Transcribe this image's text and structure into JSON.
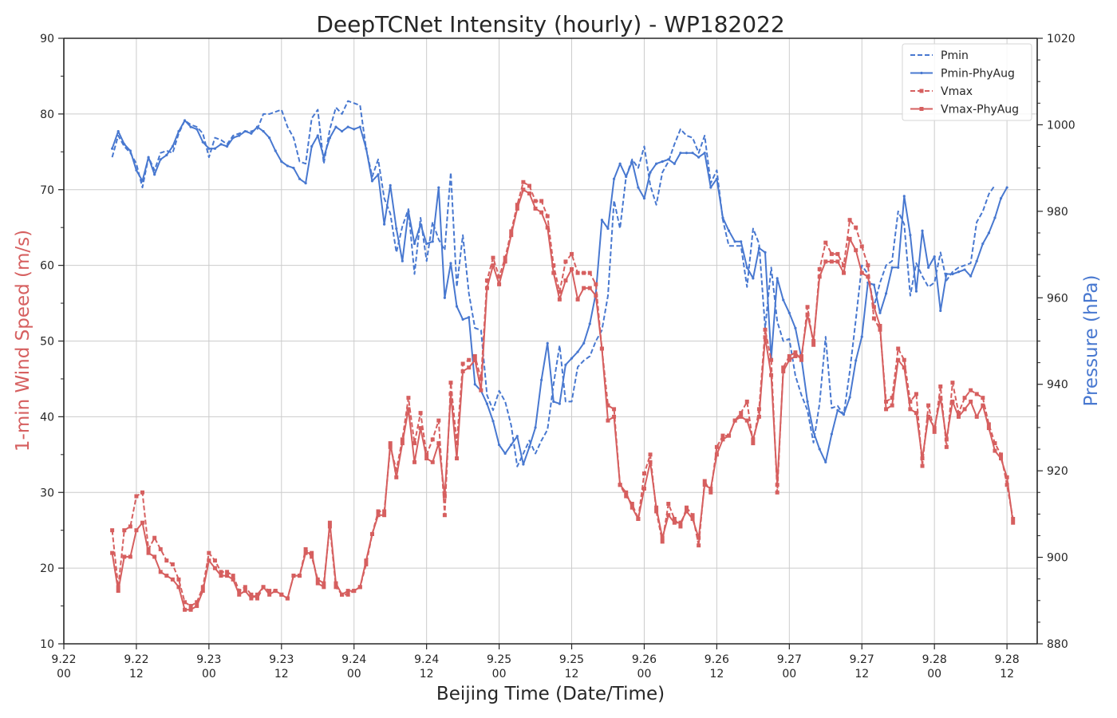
{
  "chart_data": {
    "type": "line",
    "title": "DeepTCNet Intensity (hourly) - WP182022",
    "xlabel": "Beijing Time (Date/Time)",
    "ylabel_left": "1-min Wind Speed (m/s)",
    "ylabel_right": "Pressure (hPa)",
    "ylim_left": [
      10,
      90
    ],
    "ylim_right": [
      880,
      1020
    ],
    "xlim": [
      0,
      161
    ],
    "x_ticks": [
      {
        "pos": 0,
        "date": "9.22",
        "time": "00"
      },
      {
        "pos": 12,
        "date": "9.22",
        "time": "12"
      },
      {
        "pos": 24,
        "date": "9.23",
        "time": "00"
      },
      {
        "pos": 36,
        "date": "9.23",
        "time": "12"
      },
      {
        "pos": 48,
        "date": "9.24",
        "time": "00"
      },
      {
        "pos": 60,
        "date": "9.24",
        "time": "12"
      },
      {
        "pos": 72,
        "date": "9.25",
        "time": "00"
      },
      {
        "pos": 84,
        "date": "9.25",
        "time": "12"
      },
      {
        "pos": 96,
        "date": "9.26",
        "time": "00"
      },
      {
        "pos": 108,
        "date": "9.26",
        "time": "12"
      },
      {
        "pos": 120,
        "date": "9.27",
        "time": "00"
      },
      {
        "pos": 132,
        "date": "9.27",
        "time": "12"
      },
      {
        "pos": 144,
        "date": "9.28",
        "time": "00"
      },
      {
        "pos": 156,
        "date": "9.28",
        "time": "12"
      }
    ],
    "y_ticks_left": [
      10,
      20,
      30,
      40,
      50,
      60,
      70,
      80,
      90
    ],
    "y_ticks_right": [
      880,
      900,
      920,
      940,
      960,
      980,
      1000,
      1020
    ],
    "grid": true,
    "legend_position": "top-right",
    "colors": {
      "pressure": "#4878d0",
      "wind": "#d65f5f"
    },
    "x_start": 8,
    "series": [
      {
        "name": "Pmin",
        "axis": "right",
        "style": "dashed",
        "marker": "none",
        "values": [
          992.5,
          997.5,
          995,
          993.5,
          991,
          985.5,
          992.5,
          989.5,
          993.5,
          994,
          993.5,
          998,
          1001,
          1000,
          999.5,
          998,
          992.5,
          997,
          996.5,
          995.5,
          997.5,
          998,
          998.5,
          998.5,
          999,
          1002.5,
          1002.5,
          1003,
          1003.5,
          999.5,
          997,
          991.5,
          991,
          1001.5,
          1003.5,
          991,
          999,
          1004,
          1002.5,
          1005.5,
          1005,
          1004.5,
          994.5,
          988,
          992,
          983,
          979.5,
          970.5,
          976.5,
          980.5,
          965.5,
          978.5,
          968.5,
          977.5,
          973.5,
          971,
          989,
          962.5,
          974.5,
          961,
          953,
          952.5,
          937.5,
          934,
          938.5,
          936,
          930.5,
          921,
          924,
          927,
          924,
          927,
          929.5,
          940,
          949,
          936,
          936,
          944,
          945.5,
          946.5,
          950,
          952.5,
          960.5,
          982.5,
          976,
          988,
          992,
          990,
          995,
          986,
          981.5,
          989,
          991.5,
          995.5,
          999,
          997.5,
          997,
          993.5,
          997.5,
          986.5,
          989.5,
          978,
          972,
          972,
          972,
          962.5,
          976,
          972.5,
          953,
          967,
          954.5,
          950,
          950.5,
          942,
          937.5,
          934,
          926.5,
          935.5,
          951,
          934.5,
          935,
          933,
          943,
          955,
          967.5,
          965.5,
          958,
          963.5,
          967.5,
          968.5,
          980,
          977,
          960.5,
          968,
          965,
          962.5,
          963.5,
          970.5,
          964,
          966,
          967,
          967.5,
          968,
          977.5,
          980,
          984,
          986
        ]
      },
      {
        "name": "Pmin-PhyAug",
        "axis": "right",
        "style": "solid",
        "marker": "dot",
        "values": [
          994.5,
          998.5,
          995.5,
          994,
          989.5,
          987,
          992.5,
          988.5,
          992,
          993,
          995,
          998.5,
          1001,
          999.5,
          999,
          996,
          994.5,
          994.5,
          995.5,
          995,
          997,
          997.5,
          998.5,
          998,
          999.5,
          998.5,
          997,
          994,
          991.5,
          990.5,
          990,
          987.5,
          986.5,
          995,
          997.5,
          992.5,
          997,
          999.5,
          998.5,
          999.5,
          999,
          999.5,
          994.5,
          987,
          988.5,
          977,
          986,
          976,
          968.5,
          980,
          972.5,
          977,
          972.5,
          973,
          985.5,
          960,
          968,
          958,
          955,
          955.5,
          940,
          938.5,
          935.5,
          931.5,
          926,
          924,
          926,
          928,
          921.5,
          925.5,
          930,
          941,
          949.5,
          936,
          935.5,
          944.5,
          946,
          947.5,
          949.5,
          954,
          961,
          978,
          976,
          987.5,
          991,
          988,
          991.5,
          985.5,
          983,
          989,
          991,
          991.5,
          992,
          991,
          993.5,
          993.5,
          993.5,
          992.5,
          993.5,
          985.5,
          987.5,
          978.5,
          975.5,
          973,
          973,
          967,
          964.5,
          971.5,
          970.5,
          946,
          964.5,
          959.5,
          956.5,
          953,
          946,
          936,
          929,
          925,
          922,
          928.5,
          934,
          933,
          937,
          945.5,
          951,
          963.5,
          963,
          956.5,
          961,
          967,
          967,
          983.5,
          974.5,
          961.5,
          975.5,
          967,
          969.5,
          957,
          965.5,
          965.5,
          966,
          966.5,
          965,
          968.5,
          972.5,
          975,
          978.5,
          983,
          985.5
        ]
      },
      {
        "name": "Vmax",
        "axis": "left",
        "style": "dashed",
        "marker": "square",
        "values": [
          25,
          17.5,
          25,
          25.5,
          29.5,
          30,
          22.5,
          24,
          22.5,
          21,
          20.5,
          18.5,
          15.5,
          15,
          15.5,
          17.5,
          22,
          21,
          19.5,
          19.5,
          19,
          17,
          17.5,
          16.5,
          16,
          17.5,
          17,
          17,
          16.5,
          16,
          19,
          19,
          22.5,
          21.5,
          18.5,
          18,
          25.5,
          17.5,
          16.5,
          16.5,
          17,
          17.5,
          20.5,
          24.5,
          27.5,
          27.5,
          36,
          33,
          37,
          42.5,
          36.5,
          40.5,
          35,
          37,
          39.5,
          27,
          44.5,
          36.5,
          47,
          47.5,
          48,
          45,
          58,
          61,
          58.5,
          61,
          64.5,
          68,
          71,
          70.5,
          68.5,
          68.5,
          66.5,
          60,
          56.5,
          60.5,
          61.5,
          59,
          59,
          59,
          57.5,
          49,
          41.5,
          41,
          31,
          29.5,
          28.5,
          26.5,
          32.5,
          35,
          27.5,
          23.5,
          28.5,
          26.5,
          25.5,
          28,
          27,
          23,
          31.5,
          30,
          36,
          37.5,
          37.5,
          39.5,
          40.5,
          42,
          36.5,
          41,
          51.5,
          47.5,
          30,
          46.5,
          48,
          48.5,
          47.5,
          54.5,
          49.5,
          59.5,
          63,
          61.5,
          61.5,
          60,
          66,
          65,
          62.5,
          60,
          53,
          51.5,
          42,
          42.5,
          49,
          47.5,
          42,
          43,
          33.5,
          41.5,
          38,
          44,
          36,
          44.5,
          40.5,
          42.5,
          43.5,
          43,
          42.5,
          39,
          36.5,
          35,
          31,
          26.5
        ]
      },
      {
        "name": "Vmax-PhyAug",
        "axis": "left",
        "style": "solid",
        "marker": "square",
        "values": [
          22,
          17,
          21.5,
          21.5,
          25,
          26,
          22,
          21.5,
          19.5,
          19,
          18.5,
          17.5,
          14.5,
          14.5,
          15,
          17,
          21,
          20,
          19,
          19,
          18.5,
          16.5,
          17,
          16,
          16.5,
          17.5,
          16.5,
          17,
          16.5,
          16,
          19,
          19,
          22,
          22,
          18,
          17.5,
          26,
          18,
          16.5,
          17,
          17,
          17.5,
          21,
          24.5,
          27,
          27,
          36.5,
          32,
          36.5,
          41,
          34,
          38.5,
          34.5,
          34,
          36.5,
          29.5,
          43,
          34.5,
          46,
          46.5,
          47.5,
          43.5,
          57,
          60,
          57.5,
          60.5,
          64,
          67.5,
          70,
          69.5,
          67.5,
          67,
          65,
          59,
          55.5,
          58,
          59.5,
          55.5,
          57,
          57,
          56,
          49,
          39.5,
          40,
          31,
          30,
          28,
          26.5,
          30.5,
          34,
          28,
          24,
          27,
          26,
          26,
          27.5,
          26.5,
          24,
          31,
          30.5,
          35,
          37,
          37.5,
          39.5,
          40,
          39.5,
          37,
          40,
          50.5,
          45.5,
          31,
          46,
          47.5,
          48,
          48,
          53.5,
          50,
          58.5,
          60.5,
          60.5,
          60.5,
          59,
          63.5,
          62,
          59,
          58.5,
          54.5,
          52,
          41,
          41.5,
          47.5,
          46.5,
          41,
          40.5,
          34.5,
          40,
          38.5,
          42.5,
          37,
          42,
          40,
          41,
          42,
          40,
          41.5,
          38.5,
          35.5,
          34.5,
          32,
          26
        ]
      }
    ]
  }
}
